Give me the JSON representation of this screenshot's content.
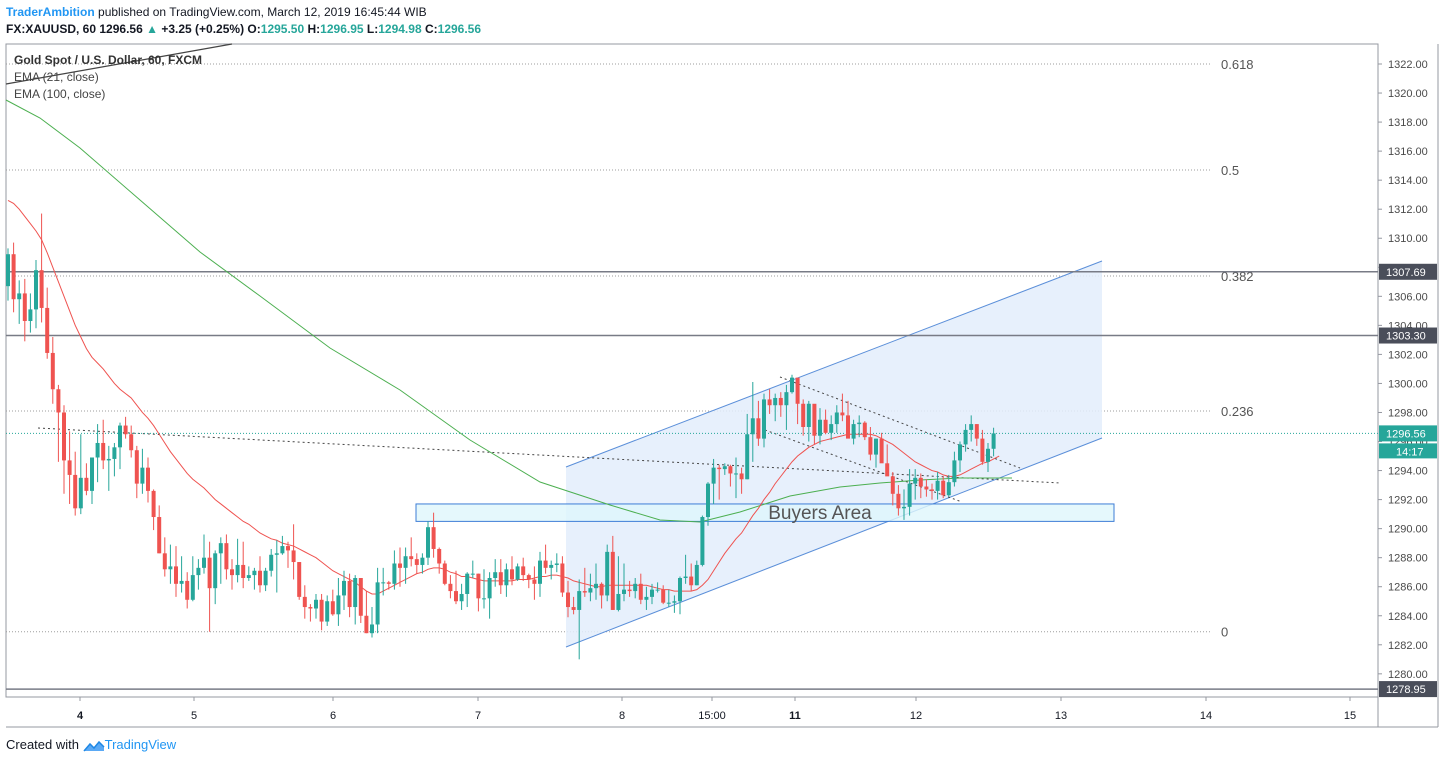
{
  "header": {
    "author": "TraderAmbition",
    "published": "published on TradingView.com, March 12, 2019 16:45:44 WIB",
    "symbol": "FX:XAUUSD, 60",
    "last": "1296.56",
    "change": "+3.25 (+0.25%)",
    "o_label": "O:",
    "o_val": "1295.50",
    "h_label": "H:",
    "h_val": "1296.95",
    "l_label": "L:",
    "l_val": "1294.98",
    "c_label": "C:",
    "c_val": "1296.56"
  },
  "legend": {
    "title": "Gold Spot / U.S. Dollar, 60, FXCM",
    "ema21": "EMA (21, close)",
    "ema100": "EMA (100, close)"
  },
  "footer": {
    "created": "Created with",
    "brand": "TradingView"
  },
  "colors": {
    "up": "#26a69a",
    "down": "#ef5350",
    "ema21": "#ef5350",
    "ema100": "#4caf50",
    "channel_fill": "#e3edfb",
    "channel_line": "#5b8fd9",
    "zone_fill": "#dff6fb",
    "zone_border": "#3d7dd6"
  },
  "chart_data": {
    "type": "candlestick",
    "ylim": [
      1278.5,
      1323.5
    ],
    "y_ticks": [
      "1322.00",
      "1320.00",
      "1318.00",
      "1316.00",
      "1314.00",
      "1312.00",
      "1310.00",
      "1308.00",
      "1306.00",
      "1304.00",
      "1302.00",
      "1300.00",
      "1298.00",
      "1296.00",
      "1294.00",
      "1292.00",
      "1290.00",
      "1288.00",
      "1286.00",
      "1284.00",
      "1282.00",
      "1280.00"
    ],
    "x_ticks": [
      "4",
      "5",
      "6",
      "7",
      "8",
      "15:00",
      "11",
      "12",
      "13",
      "14",
      "15"
    ],
    "x_ticks_bold": [
      "4",
      "11"
    ],
    "price_labels": [
      {
        "value": 1307.69,
        "text": "1307.69",
        "style": "dark"
      },
      {
        "value": 1303.3,
        "text": "1303.30",
        "style": "dark"
      },
      {
        "value": 1296.56,
        "text": "1296.56",
        "style": "teal"
      },
      {
        "value": 1278.95,
        "text": "1278.95",
        "style": "dark"
      }
    ],
    "countdown": "14:17",
    "fib_levels": [
      {
        "ratio": "0.618",
        "price": 1322.0
      },
      {
        "ratio": "0.5",
        "price": 1314.7
      },
      {
        "ratio": "0.382",
        "price": 1307.4
      },
      {
        "ratio": "0.236",
        "price": 1298.1
      },
      {
        "ratio": "0",
        "price": 1282.9
      }
    ],
    "horizontal_levels": [
      1307.69,
      1303.3,
      1278.95
    ],
    "annotation": "Buyers Area",
    "buyers_zone": [
      1290.5,
      1291.7
    ],
    "candles": [
      [
        1306.7,
        1309.3,
        1305.7,
        1308.9
      ],
      [
        1308.9,
        1309.7,
        1304.9,
        1305.8
      ],
      [
        1305.8,
        1307.1,
        1304.1,
        1306.2
      ],
      [
        1306.2,
        1307.2,
        1302.9,
        1304.3
      ],
      [
        1304.3,
        1306.2,
        1303.5,
        1305.1
      ],
      [
        1305.1,
        1308.5,
        1303.8,
        1307.8
      ],
      [
        1307.8,
        1311.7,
        1304.2,
        1305.2
      ],
      [
        1305.2,
        1306.6,
        1301.7,
        1302.1
      ],
      [
        1302.1,
        1303.2,
        1298.6,
        1299.6
      ],
      [
        1299.6,
        1299.9,
        1294.6,
        1298.0
      ],
      [
        1298.0,
        1298.5,
        1292.4,
        1294.7
      ],
      [
        1294.7,
        1296.7,
        1291.7,
        1293.7
      ],
      [
        1293.7,
        1295.3,
        1290.9,
        1291.4
      ],
      [
        1291.4,
        1296.5,
        1291.0,
        1293.5
      ],
      [
        1293.5,
        1294.5,
        1292.3,
        1292.6
      ],
      [
        1292.6,
        1294.5,
        1291.7,
        1294.9
      ],
      [
        1294.9,
        1297.2,
        1293.2,
        1295.9
      ],
      [
        1295.9,
        1297.5,
        1294.1,
        1294.7
      ],
      [
        1294.7,
        1295.7,
        1292.6,
        1294.8
      ],
      [
        1294.8,
        1295.9,
        1293.6,
        1295.6
      ],
      [
        1295.6,
        1297.3,
        1294.1,
        1297.1
      ],
      [
        1297.1,
        1297.7,
        1296.2,
        1296.5
      ],
      [
        1296.5,
        1297.1,
        1294.9,
        1295.4
      ],
      [
        1295.4,
        1295.7,
        1292.1,
        1293.1
      ],
      [
        1293.1,
        1295.5,
        1292.4,
        1294.2
      ],
      [
        1294.2,
        1294.9,
        1291.8,
        1292.6
      ],
      [
        1292.6,
        1292.7,
        1289.9,
        1290.8
      ],
      [
        1290.8,
        1291.6,
        1288.3,
        1288.3
      ],
      [
        1288.3,
        1289.4,
        1286.7,
        1287.2
      ],
      [
        1287.2,
        1288.9,
        1286.2,
        1287.4
      ],
      [
        1287.4,
        1288.8,
        1285.3,
        1286.2
      ],
      [
        1286.2,
        1288.1,
        1285.6,
        1286.4
      ],
      [
        1286.4,
        1287.0,
        1284.5,
        1285.1
      ],
      [
        1285.1,
        1288.1,
        1285.0,
        1286.8
      ],
      [
        1286.8,
        1287.9,
        1285.8,
        1287.3
      ],
      [
        1287.3,
        1289.6,
        1286.9,
        1288.0
      ],
      [
        1288.0,
        1289.1,
        1282.9,
        1285.9
      ],
      [
        1285.9,
        1288.5,
        1284.8,
        1288.3
      ],
      [
        1288.3,
        1289.4,
        1286.2,
        1289.0
      ],
      [
        1289.0,
        1289.6,
        1286.5,
        1287.2
      ],
      [
        1287.2,
        1287.9,
        1285.8,
        1286.8
      ],
      [
        1286.8,
        1289.3,
        1286.3,
        1287.5
      ],
      [
        1287.5,
        1289.1,
        1285.9,
        1286.6
      ],
      [
        1286.6,
        1287.4,
        1286.4,
        1286.8
      ],
      [
        1286.8,
        1287.3,
        1285.8,
        1287.1
      ],
      [
        1287.1,
        1288.1,
        1285.6,
        1286.1
      ],
      [
        1286.1,
        1287.3,
        1285.7,
        1287.1
      ],
      [
        1287.1,
        1288.6,
        1286.7,
        1288.2
      ],
      [
        1288.2,
        1289.2,
        1285.6,
        1288.3
      ],
      [
        1288.3,
        1289.5,
        1288.2,
        1288.8
      ],
      [
        1288.8,
        1289.1,
        1287.3,
        1288.5
      ],
      [
        1288.5,
        1290.3,
        1286.5,
        1287.7
      ],
      [
        1287.7,
        1287.7,
        1285.1,
        1285.3
      ],
      [
        1285.3,
        1286.1,
        1283.8,
        1284.6
      ],
      [
        1284.6,
        1284.8,
        1283.6,
        1284.5
      ],
      [
        1284.5,
        1285.5,
        1283.8,
        1285.1
      ],
      [
        1285.1,
        1285.5,
        1283.0,
        1283.6
      ],
      [
        1283.6,
        1285.4,
        1283.3,
        1285.0
      ],
      [
        1285.0,
        1285.8,
        1284.0,
        1284.1
      ],
      [
        1284.1,
        1286.6,
        1283.3,
        1285.4
      ],
      [
        1285.4,
        1287.1,
        1284.4,
        1286.4
      ],
      [
        1286.4,
        1286.9,
        1283.9,
        1284.6
      ],
      [
        1284.6,
        1286.8,
        1283.4,
        1286.6
      ],
      [
        1286.6,
        1286.6,
        1283.5,
        1284.0
      ],
      [
        1284.0,
        1285.7,
        1282.8,
        1282.8
      ],
      [
        1282.8,
        1284.6,
        1282.5,
        1283.4
      ],
      [
        1283.4,
        1287.3,
        1282.8,
        1286.3
      ],
      [
        1286.3,
        1287.3,
        1285.4,
        1286.3
      ],
      [
        1286.3,
        1286.4,
        1285.8,
        1286.2
      ],
      [
        1286.2,
        1288.5,
        1285.8,
        1287.6
      ],
      [
        1287.6,
        1288.7,
        1286.0,
        1287.3
      ],
      [
        1287.3,
        1288.7,
        1286.2,
        1288.1
      ],
      [
        1288.1,
        1289.4,
        1287.4,
        1287.9
      ],
      [
        1287.9,
        1288.3,
        1286.9,
        1287.5
      ],
      [
        1287.5,
        1288.3,
        1286.9,
        1288.0
      ],
      [
        1288.0,
        1290.5,
        1287.5,
        1290.1
      ],
      [
        1290.1,
        1291.1,
        1288.0,
        1288.6
      ],
      [
        1288.6,
        1288.7,
        1286.9,
        1287.6
      ],
      [
        1287.6,
        1287.8,
        1286.1,
        1286.2
      ],
      [
        1286.2,
        1286.8,
        1285.2,
        1285.7
      ],
      [
        1285.7,
        1287.1,
        1284.8,
        1285.0
      ],
      [
        1285.0,
        1286.2,
        1284.4,
        1285.5
      ],
      [
        1285.5,
        1287.0,
        1284.6,
        1286.9
      ],
      [
        1286.9,
        1287.8,
        1286.6,
        1286.9
      ],
      [
        1286.9,
        1286.9,
        1284.3,
        1285.2
      ],
      [
        1285.2,
        1287.2,
        1284.5,
        1285.2
      ],
      [
        1285.2,
        1287.0,
        1283.8,
        1286.6
      ],
      [
        1286.6,
        1287.9,
        1286.0,
        1287.0
      ],
      [
        1287.0,
        1287.9,
        1285.5,
        1286.1
      ],
      [
        1286.1,
        1287.6,
        1285.3,
        1287.2
      ],
      [
        1287.2,
        1288.1,
        1286.1,
        1286.5
      ],
      [
        1286.5,
        1287.6,
        1286.4,
        1287.4
      ],
      [
        1287.4,
        1288.0,
        1286.4,
        1286.8
      ],
      [
        1286.8,
        1286.9,
        1285.9,
        1286.5
      ],
      [
        1286.5,
        1287.4,
        1285.1,
        1286.2
      ],
      [
        1286.2,
        1288.4,
        1285.3,
        1287.8
      ],
      [
        1287.8,
        1288.9,
        1286.9,
        1287.3
      ],
      [
        1287.3,
        1287.8,
        1286.5,
        1287.5
      ],
      [
        1287.5,
        1288.3,
        1287.0,
        1287.6
      ],
      [
        1287.6,
        1288.1,
        1285.3,
        1285.6
      ],
      [
        1285.6,
        1286.4,
        1283.9,
        1284.6
      ],
      [
        1284.6,
        1285.3,
        1284.1,
        1284.4
      ],
      [
        1284.4,
        1286.5,
        1281.0,
        1285.7
      ],
      [
        1285.7,
        1287.3,
        1285.3,
        1285.6
      ],
      [
        1285.6,
        1286.9,
        1285.0,
        1285.9
      ],
      [
        1285.9,
        1287.6,
        1285.1,
        1286.2
      ],
      [
        1286.2,
        1286.3,
        1284.5,
        1285.4
      ],
      [
        1285.4,
        1288.9,
        1285.0,
        1288.4
      ],
      [
        1288.4,
        1289.5,
        1284.4,
        1284.4
      ],
      [
        1284.4,
        1288.1,
        1284.3,
        1285.5
      ],
      [
        1285.5,
        1287.6,
        1285.0,
        1285.8
      ],
      [
        1285.8,
        1286.4,
        1285.3,
        1285.7
      ],
      [
        1285.7,
        1286.6,
        1285.2,
        1286.2
      ],
      [
        1286.2,
        1286.9,
        1284.8,
        1285.1
      ],
      [
        1285.1,
        1286.0,
        1284.4,
        1285.3
      ],
      [
        1285.3,
        1286.2,
        1284.8,
        1285.8
      ],
      [
        1285.8,
        1286.3,
        1285.6,
        1285.8
      ],
      [
        1285.8,
        1286.1,
        1284.8,
        1284.9
      ],
      [
        1284.9,
        1285.8,
        1284.6,
        1284.9
      ],
      [
        1284.9,
        1285.4,
        1284.2,
        1285.0
      ],
      [
        1285.0,
        1286.7,
        1284.1,
        1286.6
      ],
      [
        1286.6,
        1288.2,
        1286.2,
        1286.7
      ],
      [
        1286.7,
        1287.6,
        1285.7,
        1286.1
      ],
      [
        1286.1,
        1287.8,
        1286.1,
        1287.5
      ],
      [
        1287.5,
        1290.9,
        1287.4,
        1290.8
      ],
      [
        1290.8,
        1293.2,
        1290.2,
        1293.1
      ],
      [
        1293.1,
        1294.8,
        1291.7,
        1294.2
      ],
      [
        1294.2,
        1294.4,
        1292.0,
        1294.1
      ],
      [
        1294.1,
        1294.5,
        1293.7,
        1294.3
      ],
      [
        1294.3,
        1294.4,
        1292.9,
        1293.8
      ],
      [
        1293.8,
        1294.9,
        1292.1,
        1293.8
      ],
      [
        1293.8,
        1294.2,
        1292.4,
        1293.4
      ],
      [
        1293.4,
        1297.9,
        1293.4,
        1296.5
      ],
      [
        1296.5,
        1300.1,
        1294.6,
        1297.6
      ],
      [
        1297.6,
        1298.8,
        1295.7,
        1296.2
      ],
      [
        1296.2,
        1299.3,
        1295.6,
        1298.9
      ],
      [
        1298.9,
        1299.6,
        1297.9,
        1298.5
      ],
      [
        1298.5,
        1299.3,
        1297.4,
        1299.0
      ],
      [
        1299.0,
        1299.4,
        1297.7,
        1298.5
      ],
      [
        1298.5,
        1299.9,
        1296.8,
        1299.4
      ],
      [
        1299.4,
        1300.6,
        1299.3,
        1300.4
      ],
      [
        1300.4,
        1300.3,
        1297.2,
        1298.6
      ],
      [
        1298.6,
        1298.9,
        1296.4,
        1297.0
      ],
      [
        1297.0,
        1298.8,
        1296.0,
        1298.6
      ],
      [
        1298.6,
        1298.4,
        1295.8,
        1296.4
      ],
      [
        1296.4,
        1298.3,
        1295.8,
        1297.5
      ],
      [
        1297.5,
        1298.2,
        1296.5,
        1296.6
      ],
      [
        1296.6,
        1297.8,
        1296.1,
        1297.2
      ],
      [
        1297.2,
        1298.5,
        1296.6,
        1298.0
      ],
      [
        1298.0,
        1299.3,
        1297.4,
        1297.8
      ],
      [
        1297.8,
        1298.8,
        1296.3,
        1296.2
      ],
      [
        1296.2,
        1297.5,
        1295.8,
        1297.2
      ],
      [
        1297.2,
        1297.8,
        1296.3,
        1297.3
      ],
      [
        1297.3,
        1297.4,
        1296.1,
        1296.3
      ],
      [
        1296.3,
        1297.0,
        1294.7,
        1295.1
      ],
      [
        1295.1,
        1296.2,
        1294.2,
        1296.2
      ],
      [
        1296.2,
        1296.6,
        1294.6,
        1294.5
      ],
      [
        1294.5,
        1295.8,
        1293.9,
        1293.6
      ],
      [
        1293.6,
        1293.9,
        1291.6,
        1292.4
      ],
      [
        1292.4,
        1293.0,
        1290.9,
        1291.4
      ],
      [
        1291.4,
        1292.7,
        1290.6,
        1291.5
      ],
      [
        1291.5,
        1294.1,
        1290.9,
        1293.1
      ],
      [
        1293.1,
        1294.1,
        1292.0,
        1293.5
      ],
      [
        1293.5,
        1293.8,
        1292.1,
        1292.9
      ],
      [
        1292.9,
        1293.4,
        1292.2,
        1292.7
      ],
      [
        1292.7,
        1293.1,
        1292.0,
        1292.6
      ],
      [
        1292.6,
        1293.9,
        1292.0,
        1293.3
      ],
      [
        1293.3,
        1293.6,
        1292.1,
        1292.3
      ],
      [
        1292.3,
        1293.7,
        1292.2,
        1293.2
      ],
      [
        1293.2,
        1295.3,
        1292.9,
        1294.7
      ],
      [
        1294.7,
        1296.0,
        1293.9,
        1295.8
      ],
      [
        1295.8,
        1297.2,
        1295.3,
        1296.8
      ],
      [
        1296.8,
        1297.8,
        1296.0,
        1297.2
      ],
      [
        1297.2,
        1297.2,
        1295.7,
        1296.2
      ],
      [
        1296.2,
        1296.8,
        1294.4,
        1294.6
      ],
      [
        1294.6,
        1295.9,
        1293.9,
        1295.5
      ],
      [
        1295.5,
        1296.95,
        1294.98,
        1296.56
      ]
    ],
    "ema21": [
      1312.6,
      1312.4,
      1312.0,
      1311.5,
      1311.0,
      1310.5,
      1309.9,
      1309.0,
      1308.0,
      1307.0,
      1306.0,
      1305.0,
      1304.0,
      1303.2,
      1302.4,
      1301.8,
      1301.4,
      1301.0,
      1300.5,
      1300.0,
      1299.6,
      1299.3,
      1299.0,
      1298.5,
      1298.0,
      1297.6,
      1297.1,
      1296.5,
      1295.9,
      1295.3,
      1294.8,
      1294.3,
      1293.8,
      1293.4,
      1293.1,
      1292.8,
      1292.4,
      1292.0,
      1291.7,
      1291.4,
      1291.1,
      1290.8,
      1290.5,
      1290.3,
      1290.0,
      1289.7,
      1289.5,
      1289.3,
      1289.2,
      1289.0,
      1288.9,
      1288.8,
      1288.6,
      1288.4,
      1288.2,
      1288.0,
      1287.7,
      1287.4,
      1287.1,
      1286.9,
      1286.7,
      1286.5,
      1286.3,
      1286.0,
      1285.7,
      1285.5,
      1285.5,
      1285.7,
      1285.9,
      1286.1,
      1286.3,
      1286.5,
      1286.7,
      1286.9,
      1287.0,
      1287.2,
      1287.3,
      1287.3,
      1287.2,
      1287.0,
      1286.9,
      1286.7,
      1286.7,
      1286.6,
      1286.5,
      1286.4,
      1286.4,
      1286.4,
      1286.4,
      1286.4,
      1286.4,
      1286.5,
      1286.5,
      1286.5,
      1286.6,
      1286.7,
      1286.7,
      1286.8,
      1286.8,
      1286.7,
      1286.6,
      1286.4,
      1286.3,
      1286.2,
      1286.1,
      1286.0,
      1286.0,
      1286.1,
      1286.1,
      1286.1,
      1286.1,
      1286.1,
      1286.1,
      1286.1,
      1286.1,
      1286.0,
      1285.9,
      1285.8,
      1285.8,
      1285.7,
      1285.7,
      1285.7,
      1285.7,
      1285.8,
      1286.1,
      1286.5,
      1287.1,
      1287.7,
      1288.3,
      1288.8,
      1289.3,
      1289.7,
      1290.3,
      1290.9,
      1291.4,
      1292.0,
      1292.5,
      1293.1,
      1293.6,
      1294.1,
      1294.6,
      1295.0,
      1295.3,
      1295.6,
      1295.8,
      1296.0,
      1296.1,
      1296.2,
      1296.3,
      1296.4,
      1296.5,
      1296.5,
      1296.5,
      1296.5,
      1296.5,
      1296.4,
      1296.2,
      1296.0,
      1295.8,
      1295.5,
      1295.2,
      1294.9,
      1294.6,
      1294.4,
      1294.2,
      1294.0,
      1293.9,
      1293.7,
      1293.6,
      1293.6,
      1293.7,
      1293.9,
      1294.1,
      1294.3,
      1294.5,
      1294.6,
      1294.8,
      1295.0
    ]
  }
}
